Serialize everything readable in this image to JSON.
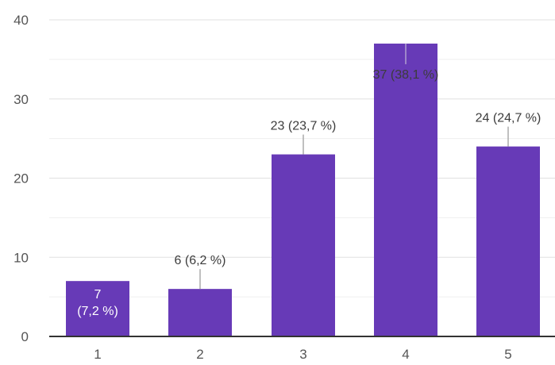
{
  "chart_data": {
    "type": "bar",
    "categories": [
      "1",
      "2",
      "3",
      "4",
      "5"
    ],
    "values": [
      7,
      6,
      23,
      37,
      24
    ],
    "labels": [
      "7 (7,2 %)",
      "6 (6,2 %)",
      "23 (23,7 %)",
      "37 (38,1 %)",
      "24 (24,7 %)"
    ],
    "label_lines": [
      [
        "7",
        "(7,2 %)"
      ],
      [
        "6 (6,2 %)"
      ],
      [
        "23 (23,7 %)"
      ],
      [
        "37 (38,1 %)"
      ],
      [
        "24 (24,7 %)"
      ]
    ],
    "y_ticks": [
      "0",
      "10",
      "20",
      "30",
      "40"
    ],
    "ylim": [
      0,
      40
    ],
    "grid": true,
    "bar_color": "#673ab7",
    "title": "",
    "xlabel": "",
    "ylabel": ""
  }
}
